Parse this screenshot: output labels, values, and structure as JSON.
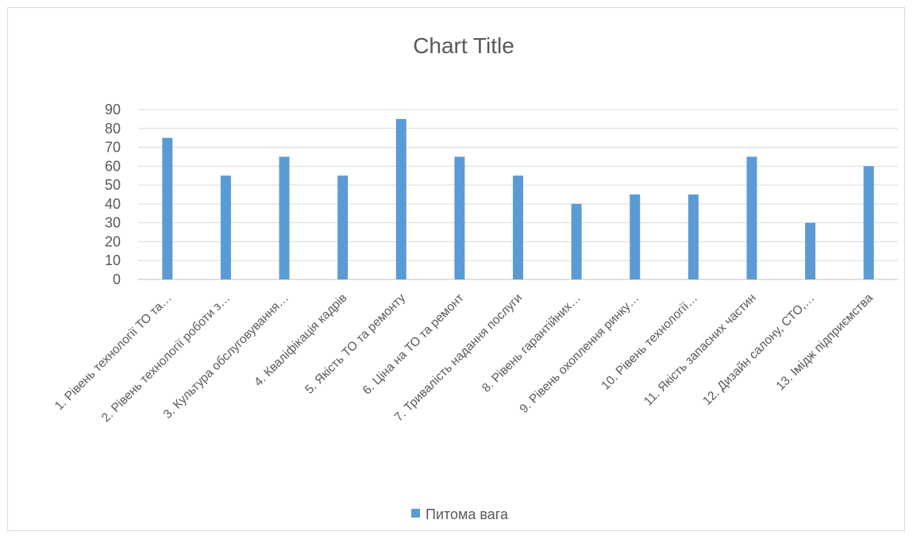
{
  "chart_data": {
    "type": "bar",
    "title": "Chart Title",
    "xlabel": "",
    "ylabel": "",
    "ylim": [
      0,
      90
    ],
    "yticks": [
      0,
      10,
      20,
      30,
      40,
      50,
      60,
      70,
      80,
      90
    ],
    "grid": true,
    "legend": "bottom",
    "categories": [
      "1. Рівень технології ТО та…",
      "2. Рівень технології роботи з…",
      "3. Культура обслуговування…",
      "4. Кваліфікація кадрів",
      "5. Якість ТО та ремонту",
      "6. Ціна на ТО та ремонт",
      "7. Тривалість надання послуги",
      "8. Рівень гарантійних…",
      "9. Рівень охоплення ринку…",
      "10. Рівень технології…",
      "11. Якість запасних частин",
      "12. Дизайн салону, СТО,…",
      "13. Імідж підприємства"
    ],
    "series": [
      {
        "name": "Питома вага",
        "color": "#5b9bd5",
        "values": [
          75,
          55,
          65,
          55,
          85,
          65,
          55,
          40,
          45,
          45,
          65,
          30,
          60
        ]
      }
    ]
  }
}
